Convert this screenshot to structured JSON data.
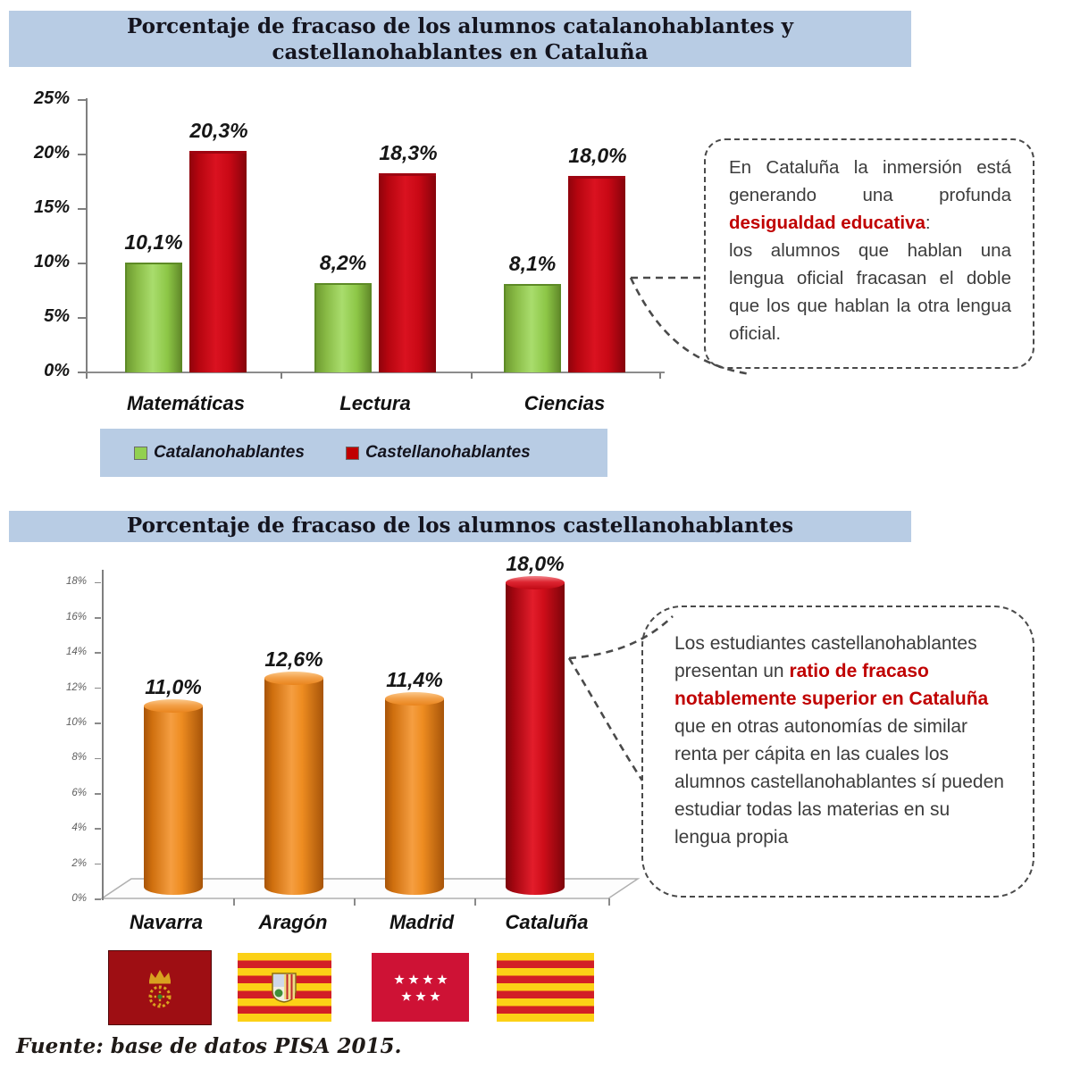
{
  "header1": {
    "line1": "Porcentaje de fracaso de los alumnos catalanohablantes y",
    "line2": "castellanohablantes en Cataluña"
  },
  "header2": {
    "title": "Porcentaje de fracaso de los alumnos castellanohablantes"
  },
  "chart_data": [
    {
      "type": "bar",
      "title": "Porcentaje de fracaso de los alumnos catalanohablantes y castellanohablantes en Cataluña",
      "categories": [
        "Matemáticas",
        "Lectura",
        "Ciencias"
      ],
      "series": [
        {
          "name": "Catalanohablantes",
          "color": "#92d050",
          "values": [
            10.1,
            8.2,
            8.1
          ],
          "labels": [
            "10,1%",
            "8,2%",
            "8,1%"
          ]
        },
        {
          "name": "Castellanohablantes",
          "color": "#c00000",
          "values": [
            20.3,
            18.3,
            18.0
          ],
          "labels": [
            "20,3%",
            "18,3%",
            "18,0%"
          ]
        }
      ],
      "yticks": [
        "0%",
        "5%",
        "10%",
        "15%",
        "20%",
        "25%"
      ],
      "ylim": [
        0,
        25
      ],
      "grid": false,
      "legend_position": "bottom"
    },
    {
      "type": "bar",
      "title": "Porcentaje de fracaso de los alumnos castellanohablantes",
      "categories": [
        "Navarra",
        "Aragón",
        "Madrid",
        "Cataluña"
      ],
      "values": [
        11.0,
        12.6,
        11.4,
        18.0
      ],
      "labels": [
        "11,0%",
        "12,6%",
        "11,4%",
        "18,0%"
      ],
      "bar_colors": [
        "#ee8c20",
        "#ee8c20",
        "#ee8c20",
        "#cf0d19"
      ],
      "highlight_index": 3,
      "yticks": [
        "0%",
        "2%",
        "4%",
        "6%",
        "8%",
        "10%",
        "12%",
        "14%",
        "16%",
        "18%"
      ],
      "ylim": [
        0,
        18
      ],
      "grid": false,
      "legend_position": "none"
    }
  ],
  "legend": {
    "items": [
      {
        "label": "Catalanohablantes",
        "color": "#92d050"
      },
      {
        "label": "Castellanohablantes",
        "color": "#c00000"
      }
    ]
  },
  "callout1": {
    "part1": "En Cataluña la inmersión está generando una profunda ",
    "highlight": "desigualdad educativa",
    "part2": ":",
    "part3": "los alumnos que hablan una lengua oficial fracasan el doble que los que hablan la otra lengua oficial."
  },
  "callout2": {
    "part1": "Los estudiantes castellanohablantes presentan un ",
    "highlight": "ratio de fracaso notablemente superior en Cataluña",
    "part2": " que en otras autonomías de similar renta per cápita en las cuales los alumnos castellanohablantes sí pueden estudiar todas las materias en su lengua propia"
  },
  "flags": [
    {
      "icon": "flag-navarra",
      "region": "Navarra"
    },
    {
      "icon": "flag-aragon",
      "region": "Aragón"
    },
    {
      "icon": "flag-madrid",
      "region": "Madrid"
    },
    {
      "icon": "flag-cataluna",
      "region": "Cataluña"
    }
  ],
  "footer": {
    "source": "Fuente: base de datos PISA 2015."
  },
  "colors": {
    "header_bg": "#b8cce4",
    "catalan_green": "#92d050",
    "castellano_red": "#c00000",
    "other_region_orange": "#ee8c20",
    "cataluna_bar_red": "#cf0d19",
    "callout_text": "#3c3c3c",
    "callout_highlight": "#c00000"
  }
}
